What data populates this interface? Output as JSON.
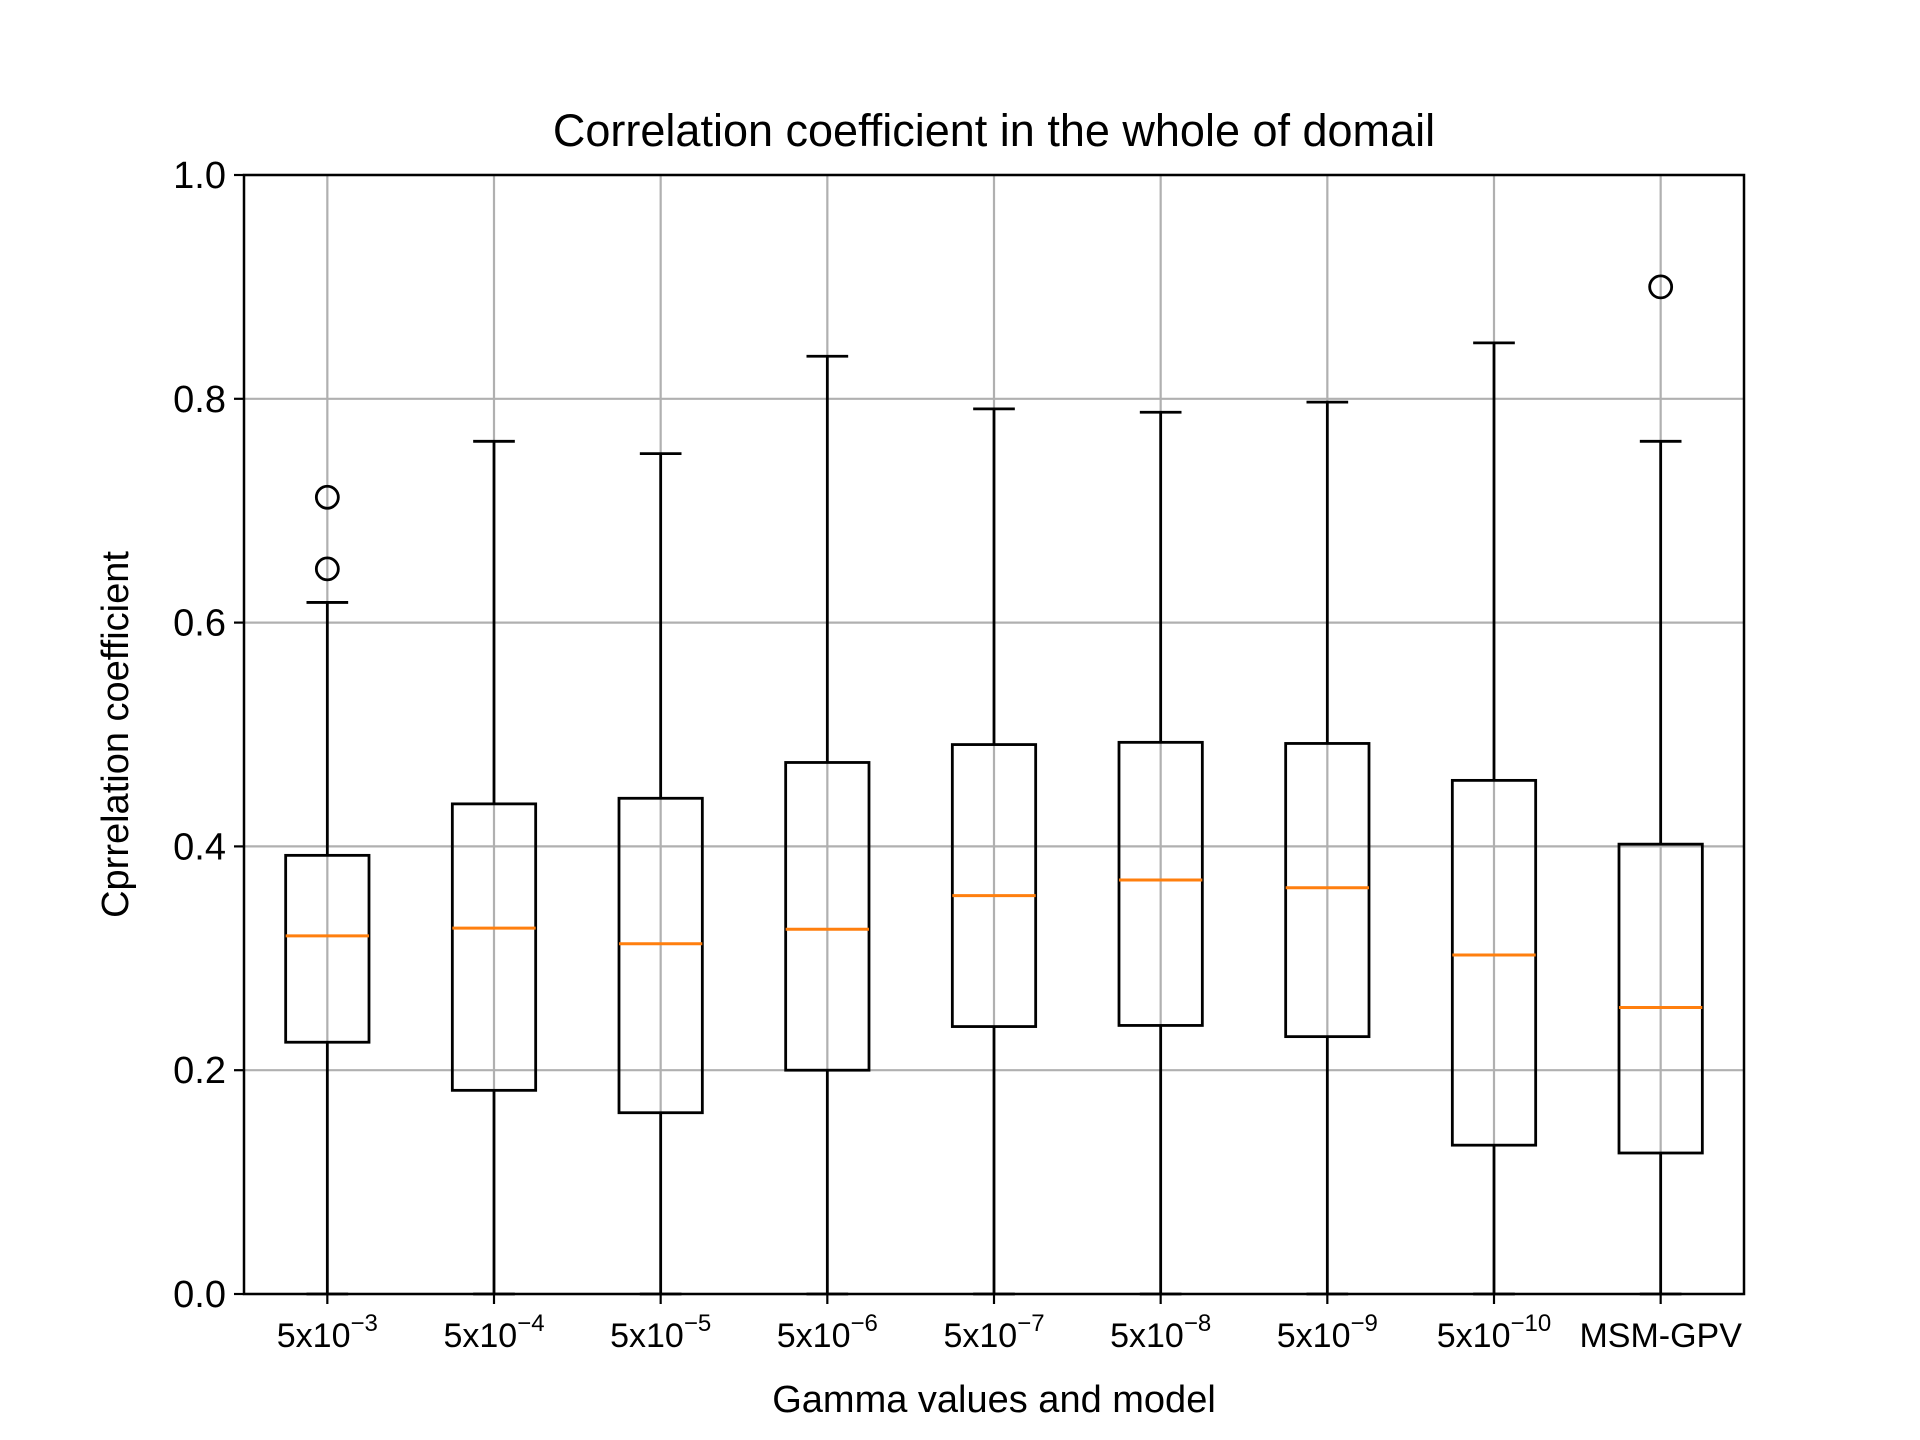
{
  "chart_data": {
    "type": "box",
    "title": "Correlation coefficient in the whole of domail",
    "xlabel": "Gamma values and model",
    "ylabel": "Cprrelation coefficient",
    "ylim": [
      0.0,
      1.0
    ],
    "yticks": [
      "0.0",
      "0.2",
      "0.4",
      "0.6",
      "0.8",
      "1.0"
    ],
    "grid": true,
    "categories": [
      {
        "base": "5x10",
        "exp": "−3"
      },
      {
        "base": "5x10",
        "exp": "−4"
      },
      {
        "base": "5x10",
        "exp": "−5"
      },
      {
        "base": "5x10",
        "exp": "−6"
      },
      {
        "base": "5x10",
        "exp": "−7"
      },
      {
        "base": "5x10",
        "exp": "−8"
      },
      {
        "base": "5x10",
        "exp": "−9"
      },
      {
        "base": "5x10",
        "exp": "−10"
      },
      {
        "base": "MSM-GPV",
        "exp": ""
      }
    ],
    "boxes": [
      {
        "whisker_low": 0.0,
        "q1": 0.225,
        "median": 0.32,
        "q3": 0.392,
        "whisker_high": 0.618,
        "outliers": [
          0.648,
          0.712
        ]
      },
      {
        "whisker_low": 0.0,
        "q1": 0.182,
        "median": 0.327,
        "q3": 0.438,
        "whisker_high": 0.762,
        "outliers": []
      },
      {
        "whisker_low": 0.0,
        "q1": 0.162,
        "median": 0.313,
        "q3": 0.443,
        "whisker_high": 0.751,
        "outliers": []
      },
      {
        "whisker_low": 0.0,
        "q1": 0.2,
        "median": 0.326,
        "q3": 0.475,
        "whisker_high": 0.838,
        "outliers": []
      },
      {
        "whisker_low": 0.0,
        "q1": 0.239,
        "median": 0.356,
        "q3": 0.491,
        "whisker_high": 0.791,
        "outliers": []
      },
      {
        "whisker_low": 0.0,
        "q1": 0.24,
        "median": 0.37,
        "q3": 0.493,
        "whisker_high": 0.788,
        "outliers": []
      },
      {
        "whisker_low": 0.0,
        "q1": 0.23,
        "median": 0.363,
        "q3": 0.492,
        "whisker_high": 0.797,
        "outliers": []
      },
      {
        "whisker_low": 0.0,
        "q1": 0.133,
        "median": 0.303,
        "q3": 0.459,
        "whisker_high": 0.85,
        "outliers": []
      },
      {
        "whisker_low": 0.0,
        "q1": 0.126,
        "median": 0.256,
        "q3": 0.402,
        "whisker_high": 0.762,
        "outliers": [
          0.9
        ]
      }
    ],
    "colors": {
      "box": "#000000",
      "median": "#ff7f0e",
      "grid": "#b0b0b0",
      "axes": "#000000"
    }
  }
}
